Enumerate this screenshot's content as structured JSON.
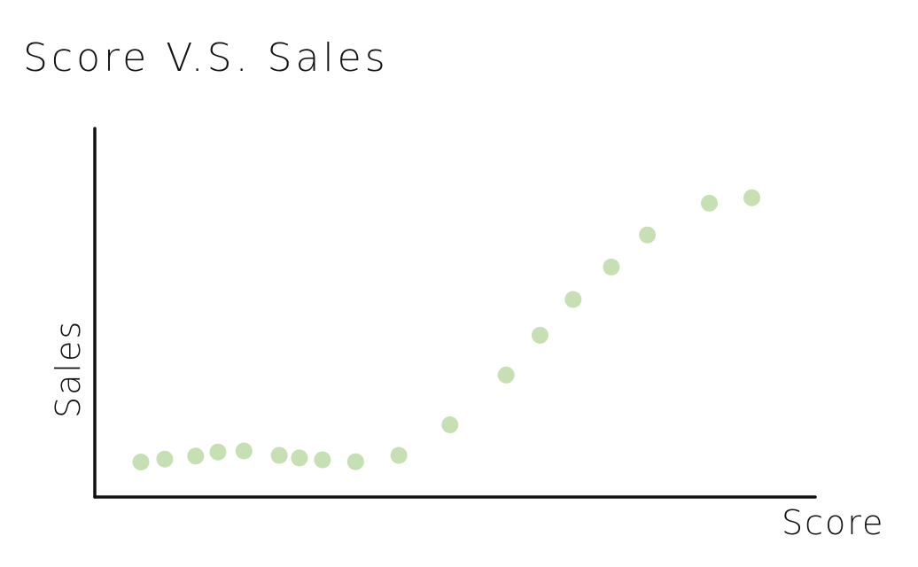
{
  "chart_data": {
    "type": "scatter",
    "title": "Score V.S. Sales",
    "xlabel": "Score",
    "ylabel": "Sales",
    "xlim": [
      0,
      100
    ],
    "ylim": [
      0,
      100
    ],
    "grid": false,
    "series": [
      {
        "color": "#c6e0b4",
        "points": [
          {
            "x": 6.4,
            "y": 9.5
          },
          {
            "x": 9.7,
            "y": 10.3
          },
          {
            "x": 14.0,
            "y": 11.1
          },
          {
            "x": 17.1,
            "y": 12.2
          },
          {
            "x": 20.7,
            "y": 12.5
          },
          {
            "x": 25.6,
            "y": 11.3
          },
          {
            "x": 28.4,
            "y": 10.6
          },
          {
            "x": 31.6,
            "y": 10.1
          },
          {
            "x": 36.2,
            "y": 9.6
          },
          {
            "x": 42.2,
            "y": 11.3
          },
          {
            "x": 49.3,
            "y": 19.6
          },
          {
            "x": 57.1,
            "y": 33.1
          },
          {
            "x": 61.8,
            "y": 43.9
          },
          {
            "x": 66.4,
            "y": 53.6
          },
          {
            "x": 71.7,
            "y": 62.4
          },
          {
            "x": 76.7,
            "y": 71.1
          },
          {
            "x": 85.3,
            "y": 79.7
          },
          {
            "x": 91.2,
            "y": 81.2
          }
        ]
      }
    ]
  }
}
